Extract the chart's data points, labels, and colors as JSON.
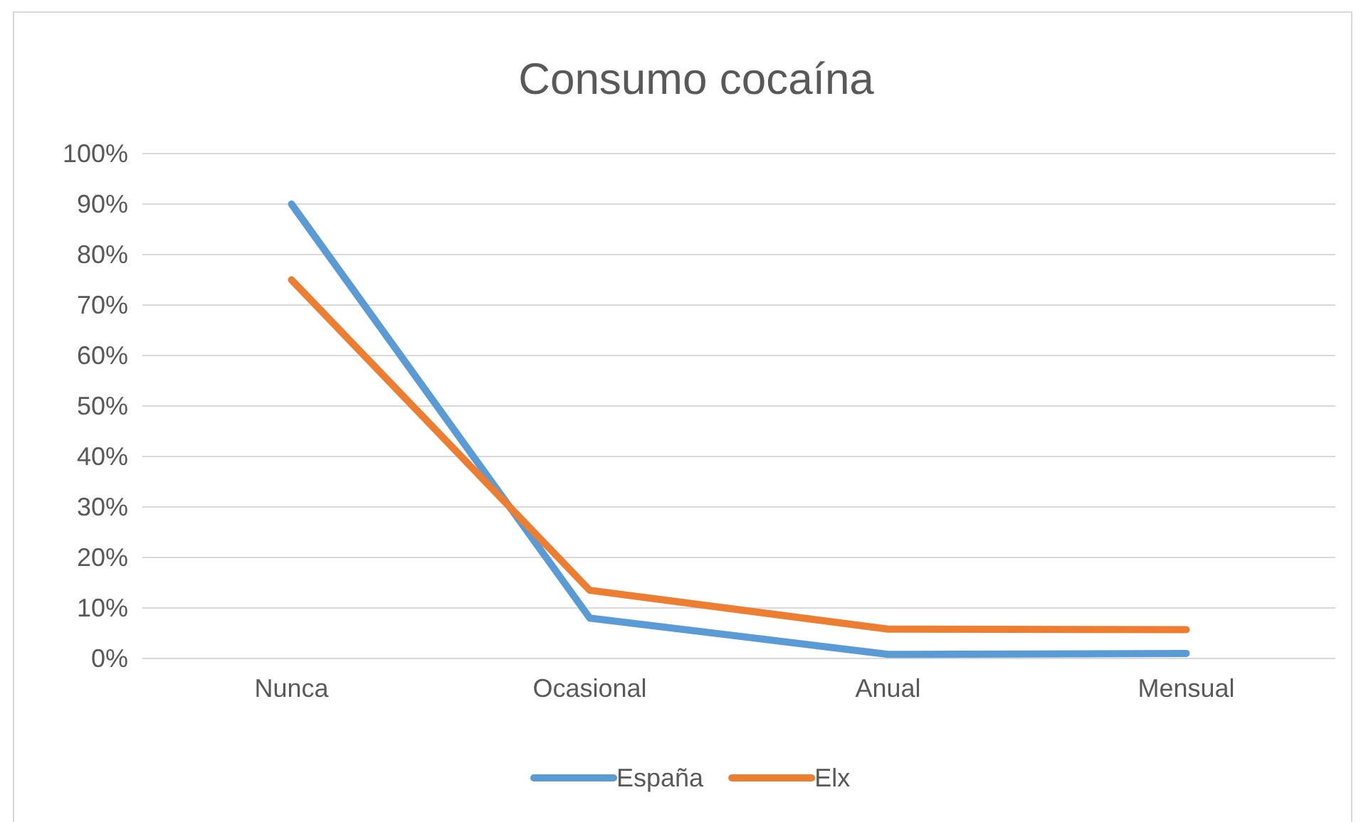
{
  "chart_data": {
    "type": "line",
    "title": "Consumo cocaína",
    "categories": [
      "Nunca",
      "Ocasional",
      "Anual",
      "Mensual"
    ],
    "series": [
      {
        "name": "España",
        "color": "#5b9bd5",
        "values": [
          90,
          8,
          0.8,
          1
        ]
      },
      {
        "name": "Elx",
        "color": "#ed7d31",
        "values": [
          75,
          13.5,
          5.8,
          5.7
        ]
      }
    ],
    "ylim": [
      0,
      100
    ],
    "yticks": [
      {
        "value": 0,
        "label": "0%"
      },
      {
        "value": 10,
        "label": "10%"
      },
      {
        "value": 20,
        "label": "20%"
      },
      {
        "value": 30,
        "label": "30%"
      },
      {
        "value": 40,
        "label": "40%"
      },
      {
        "value": 50,
        "label": "50%"
      },
      {
        "value": 60,
        "label": "60%"
      },
      {
        "value": 70,
        "label": "70%"
      },
      {
        "value": 80,
        "label": "80%"
      },
      {
        "value": 90,
        "label": "90%"
      },
      {
        "value": 100,
        "label": "100%"
      }
    ],
    "grid": "y",
    "legend": "bottom",
    "marker": "none",
    "line_style": "solid"
  }
}
